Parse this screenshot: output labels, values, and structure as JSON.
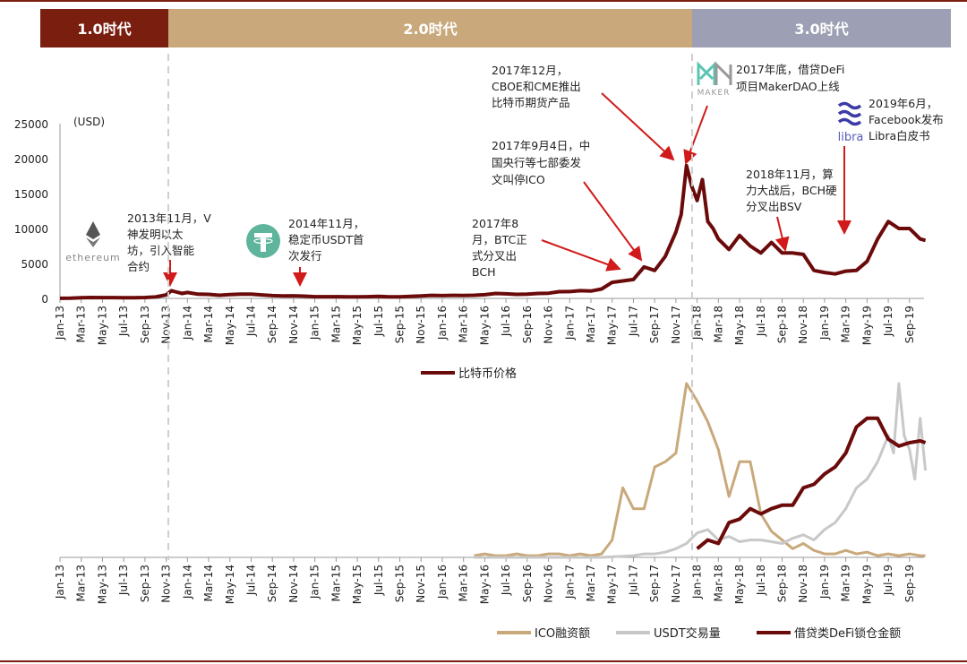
{
  "eras": [
    {
      "label": "1.0时代",
      "color": "#7a1e10",
      "from": 0,
      "to": 10.6
    },
    {
      "label": "2.0时代",
      "color": "#c9a97c",
      "from": 10.6,
      "to": 60
    },
    {
      "label": "3.0时代",
      "color": "#9d9fb4",
      "from": 60,
      "to": 84.4
    }
  ],
  "logos": {
    "ethereum": "ethereum",
    "maker": "MAKER",
    "libra": "libra"
  },
  "annotations": [
    {
      "lines": [
        "2013年11月，V",
        "神发明以太",
        "坊，引入智能",
        "合约"
      ]
    },
    {
      "lines": [
        "2014年11月，",
        "稳定币USDT首",
        "次发行"
      ]
    },
    {
      "lines": [
        "2017年8",
        "月，BTC正",
        "式分叉出",
        "BCH"
      ]
    },
    {
      "lines": [
        "2017年9月4日，中",
        "国央行等七部委发",
        "文叫停ICO"
      ]
    },
    {
      "lines": [
        "2017年12月，",
        "CBOE和CME推出",
        "比特币期货产品"
      ]
    },
    {
      "lines": [
        "2017年底，借贷DeFi",
        "项目MakerDAO上线"
      ]
    },
    {
      "lines": [
        "2018年11月，算",
        "力大战后，BCH硬",
        "分叉出BSV"
      ]
    },
    {
      "lines": [
        "2019年6月，",
        "Facebook发布",
        "Libra白皮书"
      ]
    }
  ],
  "chart_data": [
    {
      "type": "line",
      "title": "",
      "ylabel": "(USD)",
      "ylim": [
        0,
        25000
      ],
      "yticks": [
        "0",
        "5000",
        "10000",
        "15000",
        "20000",
        "25000"
      ],
      "x_ticks": [
        "Jan-13",
        "Mar-13",
        "May-13",
        "Jul-13",
        "Sep-13",
        "Nov-13",
        "Jan-14",
        "Mar-14",
        "May-14",
        "Jul-14",
        "Sep-14",
        "Nov-14",
        "Jan-15",
        "Mar-15",
        "May-15",
        "Jul-15",
        "Sep-15",
        "Nov-15",
        "Jan-16",
        "Mar-16",
        "May-16",
        "Jul-16",
        "Sep-16",
        "Nov-16",
        "Jan-17",
        "Mar-17",
        "May-17",
        "Jul-17",
        "Sep-17",
        "Nov-17",
        "Jan-18",
        "Mar-18",
        "May-18",
        "Jul-18",
        "Sep-18",
        "Nov-18",
        "Jan-19",
        "Mar-19",
        "May-19",
        "Jul-19",
        "Sep-19"
      ],
      "x_unit": "months since Jan-13",
      "series": [
        {
          "name": "比特币价格",
          "color": "#6b0a0a",
          "x": [
            0,
            1,
            2,
            3,
            4,
            5,
            6,
            7,
            8,
            9,
            10,
            10.5,
            11,
            11.5,
            12,
            13,
            14,
            15,
            16,
            17,
            18,
            19,
            20,
            21,
            22,
            23,
            24,
            25,
            26,
            27,
            28,
            29,
            30,
            31,
            32,
            33,
            34,
            35,
            36,
            37,
            38,
            39,
            40,
            41,
            42,
            43,
            44,
            45,
            46,
            47,
            48,
            49,
            50,
            51,
            52,
            53,
            54,
            55,
            56,
            57,
            58,
            58.5,
            59,
            59.5,
            60,
            60.5,
            61,
            61.5,
            62,
            63,
            64,
            65,
            66,
            67,
            68,
            69,
            70,
            71,
            72,
            73,
            74,
            75,
            76,
            77,
            78,
            79,
            80,
            81,
            81.5
          ],
          "y": [
            13,
            30,
            90,
            130,
            115,
            110,
            90,
            100,
            125,
            200,
            500,
            1100,
            900,
            700,
            850,
            600,
            580,
            450,
            550,
            620,
            600,
            500,
            400,
            350,
            370,
            320,
            250,
            240,
            250,
            230,
            235,
            250,
            280,
            230,
            235,
            300,
            350,
            430,
            400,
            430,
            420,
            450,
            530,
            700,
            650,
            580,
            610,
            700,
            740,
            960,
            980,
            1100,
            1050,
            1350,
            2300,
            2500,
            2700,
            4500,
            4000,
            6000,
            9500,
            12000,
            19000,
            16000,
            14000,
            17000,
            11000,
            10000,
            8500,
            7000,
            9000,
            7500,
            6500,
            8000,
            6500,
            6500,
            6300,
            4000,
            3700,
            3500,
            3900,
            4000,
            5300,
            8500,
            11000,
            10000,
            10000,
            8500,
            8300
          ]
        }
      ]
    },
    {
      "type": "line",
      "title": "",
      "ylim": [
        0,
        100
      ],
      "y_unit": "relative index (no axis shown)",
      "series": [
        {
          "name": "ICO融资额",
          "color": "#c9a97c",
          "x": [
            39,
            40,
            41,
            42,
            43,
            44,
            45,
            46,
            47,
            48,
            49,
            50,
            51,
            52,
            53,
            54,
            55,
            56,
            57,
            58,
            59,
            60,
            61,
            62,
            63,
            64,
            65,
            66,
            67,
            68,
            69,
            70,
            71,
            72,
            73,
            74,
            75,
            76,
            77,
            78,
            79,
            80,
            81,
            81.5
          ],
          "y": [
            1,
            2,
            1,
            1,
            2,
            1,
            1,
            2,
            2,
            1,
            2,
            1,
            2,
            10,
            40,
            28,
            28,
            52,
            55,
            60,
            100,
            90,
            78,
            62,
            35,
            55,
            55,
            25,
            15,
            10,
            5,
            8,
            4,
            2,
            2,
            4,
            2,
            3,
            1,
            2,
            1,
            2,
            1,
            1
          ]
        },
        {
          "name": "USDT交易量",
          "color": "#c8c8c8",
          "x": [
            39,
            42,
            45,
            48,
            51,
            54,
            55,
            56,
            57,
            58,
            59,
            60,
            61,
            62,
            63,
            64,
            65,
            66,
            67,
            68,
            69,
            70,
            71,
            72,
            73,
            74,
            75,
            76,
            77,
            78,
            78.5,
            79,
            79.5,
            80,
            80.5,
            81,
            81.5
          ],
          "y": [
            0,
            0,
            0,
            0,
            0,
            1,
            2,
            2,
            3,
            5,
            8,
            14,
            16,
            10,
            12,
            9,
            10,
            10,
            9,
            8,
            11,
            13,
            10,
            16,
            20,
            28,
            40,
            45,
            55,
            70,
            60,
            100,
            70,
            62,
            45,
            80,
            50
          ]
        },
        {
          "name": "借贷类DeFi锁仓金额",
          "color": "#6b0a0a",
          "x": [
            60,
            61,
            62,
            63,
            64,
            65,
            66,
            67,
            68,
            69,
            70,
            71,
            72,
            73,
            74,
            75,
            76,
            77,
            78,
            79,
            80,
            81,
            81.5
          ],
          "y": [
            5,
            10,
            8,
            20,
            22,
            28,
            25,
            28,
            30,
            30,
            40,
            42,
            48,
            52,
            60,
            75,
            80,
            80,
            68,
            64,
            66,
            67,
            66
          ]
        }
      ]
    }
  ]
}
